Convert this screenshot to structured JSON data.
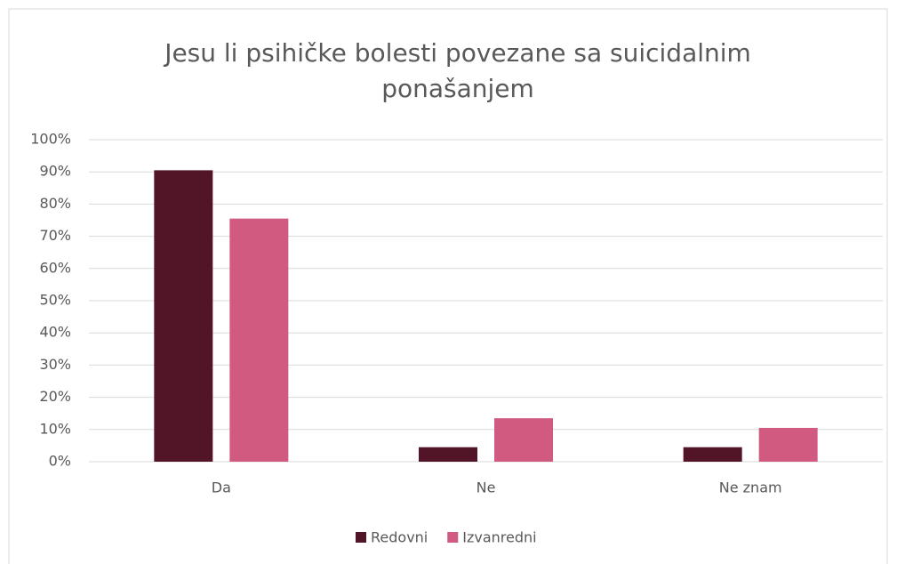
{
  "chart_data": {
    "type": "bar",
    "title": "Jesu li psihičke bolesti povezane sa suicidalnim ponašanjem",
    "categories": [
      "Da",
      "Ne",
      "Ne znam"
    ],
    "series": [
      {
        "name": "Redovni",
        "color": "#521527",
        "values": [
          90.5,
          4.5,
          4.5
        ]
      },
      {
        "name": "Izvanredni",
        "color": "#d15b80",
        "values": [
          75.5,
          13.5,
          10.5
        ]
      }
    ],
    "ylim": [
      0,
      100
    ],
    "yticks": [
      {
        "value": 0,
        "label": "0%"
      },
      {
        "value": 10,
        "label": "10%"
      },
      {
        "value": 20,
        "label": "20%"
      },
      {
        "value": 30,
        "label": "30%"
      },
      {
        "value": 40,
        "label": "40%"
      },
      {
        "value": 50,
        "label": "50%"
      },
      {
        "value": 60,
        "label": "60%"
      },
      {
        "value": 70,
        "label": "70%"
      },
      {
        "value": 80,
        "label": "80%"
      },
      {
        "value": 90,
        "label": "90%"
      },
      {
        "value": 100,
        "label": "100%"
      }
    ],
    "grid": true,
    "legend": "bottom"
  }
}
